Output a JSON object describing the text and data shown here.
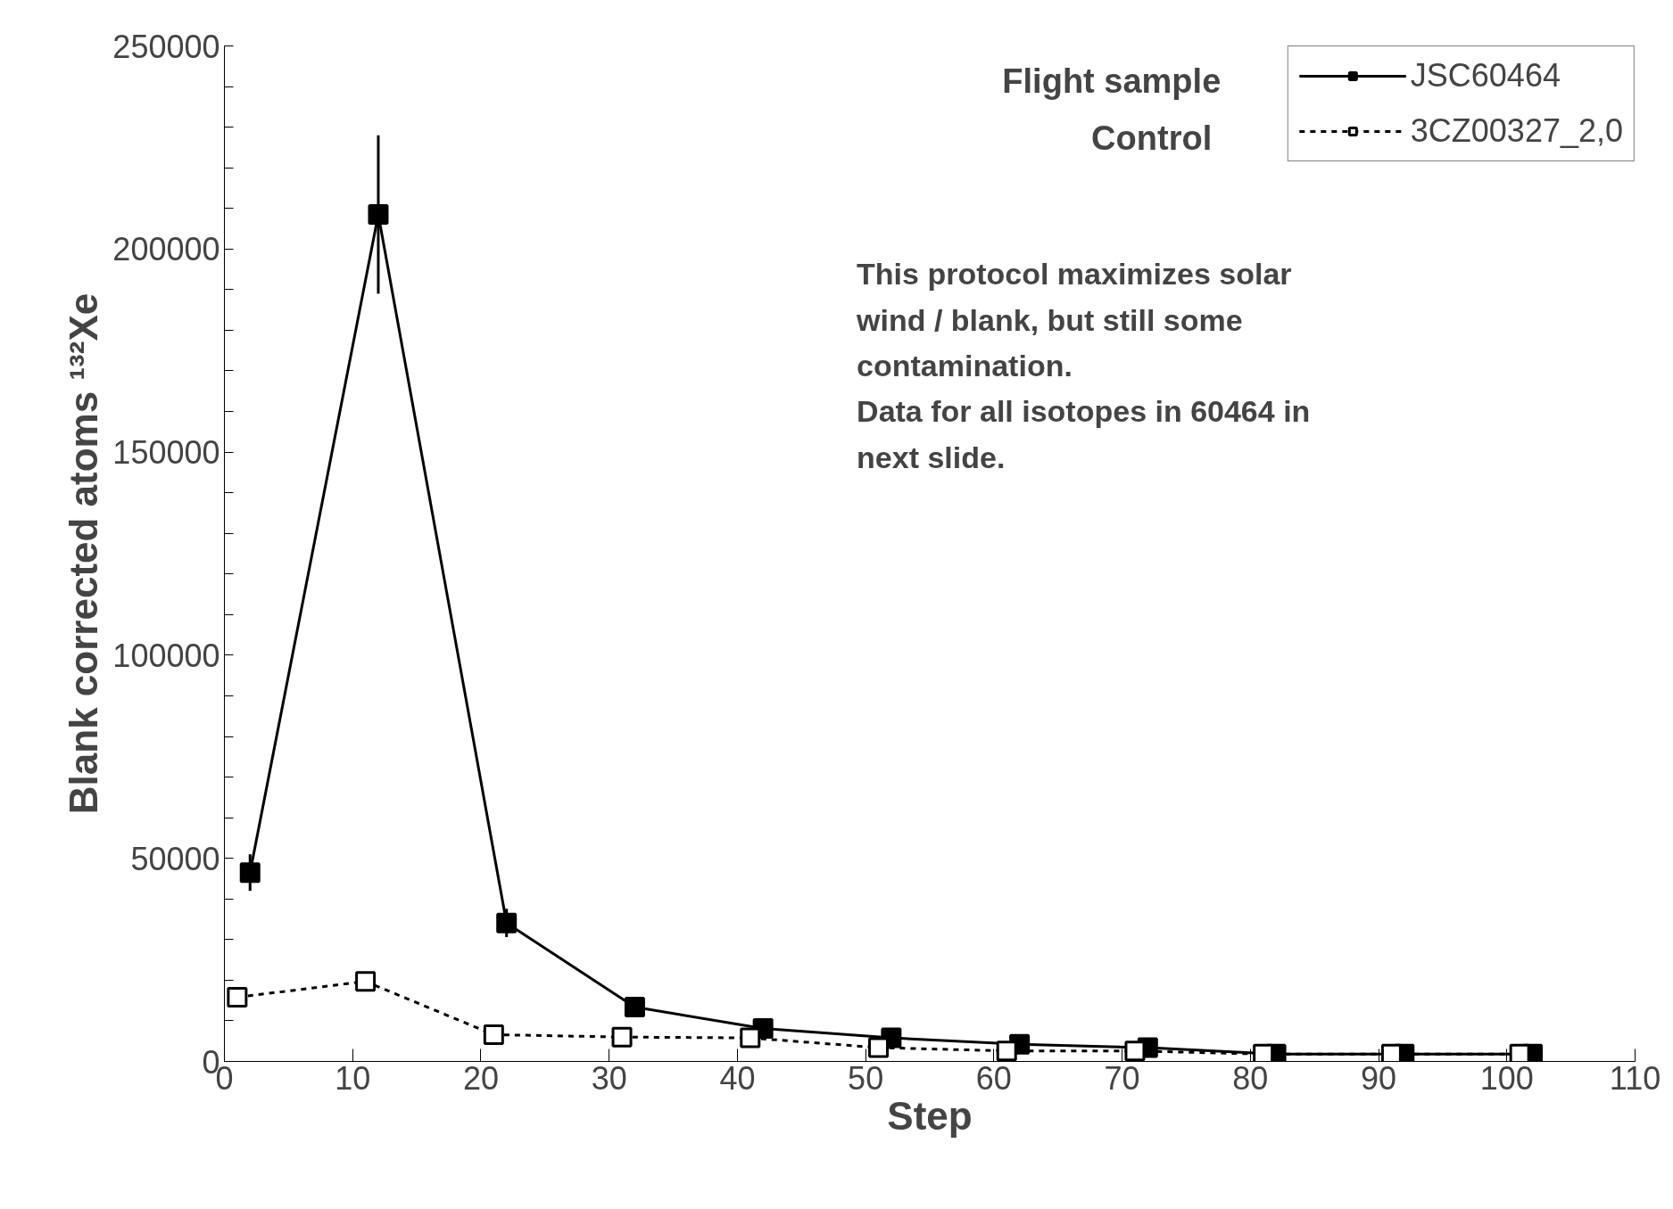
{
  "chart_data": {
    "type": "line",
    "xlabel": "Step",
    "ylabel": "Blank corrected atoms ¹³²Xe",
    "xlim": [
      0,
      110
    ],
    "xticks": [
      0,
      10,
      20,
      30,
      40,
      50,
      60,
      70,
      80,
      90,
      100,
      110
    ],
    "ylim": [
      0,
      250000
    ],
    "yticks": [
      0,
      {
        "value": 10000,
        "label": null
      },
      {
        "value": 20000,
        "label": null
      },
      {
        "value": 30000,
        "label": null
      },
      {
        "value": 40000,
        "label": null
      },
      50000,
      {
        "value": 60000,
        "label": null
      },
      {
        "value": 70000,
        "label": null
      },
      {
        "value": 80000,
        "label": null
      },
      {
        "value": 90000,
        "label": null
      },
      100000,
      {
        "value": 110000,
        "label": null
      },
      {
        "value": 120000,
        "label": null
      },
      {
        "value": 130000,
        "label": null
      },
      {
        "value": 140000,
        "label": null
      },
      150000,
      {
        "value": 160000,
        "label": null
      },
      {
        "value": 170000,
        "label": null
      },
      {
        "value": 180000,
        "label": null
      },
      {
        "value": 190000,
        "label": null
      },
      200000,
      {
        "value": 210000,
        "label": null
      },
      {
        "value": 220000,
        "label": null
      },
      {
        "value": 230000,
        "label": null
      },
      {
        "value": 240000,
        "label": null
      },
      250000
    ],
    "grid": false,
    "legend": "top right",
    "marker": "square",
    "series": [
      {
        "name": "JSC60464",
        "color": "#000000",
        "line_style": "solid",
        "x": [
          2,
          12,
          22,
          32,
          42,
          52,
          62,
          72,
          82,
          92,
          102
        ],
        "values": [
          46500,
          208500,
          34100,
          13400,
          8100,
          5800,
          4200,
          3400,
          1800,
          1800,
          1800
        ],
        "errors": [
          4500,
          19500,
          3500,
          null,
          null,
          null,
          null,
          null,
          null,
          null,
          null
        ]
      },
      {
        "name": "3CZ00327_2,0",
        "color": "#000000",
        "line_style": "dashed",
        "x": [
          1,
          11,
          21,
          31,
          41,
          51,
          61,
          71,
          81,
          91,
          101
        ],
        "values": [
          15800,
          19700,
          6600,
          6000,
          5800,
          3400,
          2600,
          2600,
          1800,
          1800,
          1800
        ]
      }
    ],
    "annotations": [
      "Flight sample",
      "Control",
      "This protocol maximizes solar\nwind / blank, but still some\ncontamination.\nData for all isotopes in 60464 in\nnext slide."
    ]
  }
}
